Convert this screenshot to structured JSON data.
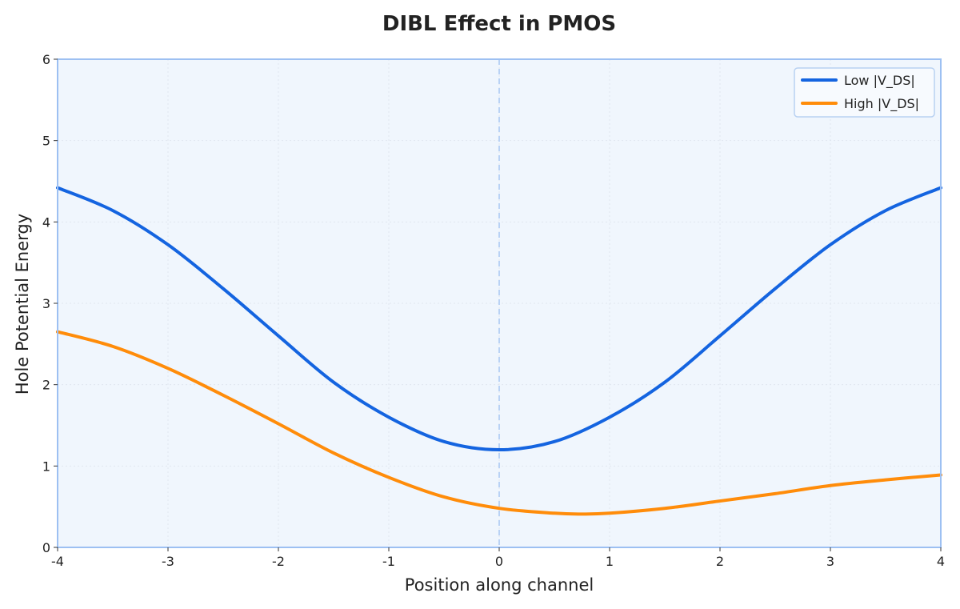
{
  "chart_data": {
    "type": "line",
    "title": "DIBL Effect in PMOS",
    "xlabel": "Position along channel",
    "ylabel": "Hole Potential Energy",
    "xlim": [
      -4,
      4
    ],
    "ylim": [
      0,
      6
    ],
    "xticks": [
      -4,
      -3,
      -2,
      -1,
      0,
      1,
      2,
      3,
      4
    ],
    "yticks": [
      0,
      1,
      2,
      3,
      4,
      5,
      6
    ],
    "xtick_labels": [
      "-4",
      "-3",
      "-2",
      "-1",
      "0",
      "1",
      "2",
      "3",
      "4"
    ],
    "ytick_labels": [
      "0",
      "1",
      "2",
      "3",
      "4",
      "5",
      "6"
    ],
    "grid": true,
    "legend_position": "top-right",
    "vline_x": 0,
    "series": [
      {
        "name": "Low |V_DS|",
        "color": "#1464e0",
        "x": [
          -4,
          -3.5,
          -3,
          -2.5,
          -2,
          -1.5,
          -1,
          -0.5,
          0,
          0.5,
          1,
          1.5,
          2,
          2.5,
          3,
          3.5,
          4
        ],
        "y": [
          4.42,
          4.14,
          3.72,
          3.18,
          2.6,
          2.03,
          1.6,
          1.3,
          1.2,
          1.3,
          1.6,
          2.03,
          2.6,
          3.18,
          3.72,
          4.14,
          4.42
        ]
      },
      {
        "name": "High |V_DS|",
        "color": "#ff8c0a",
        "x": [
          -4,
          -3.5,
          -3,
          -2.5,
          -2,
          -1.5,
          -1,
          -0.5,
          0,
          0.5,
          0.75,
          1,
          1.5,
          2,
          2.5,
          3,
          3.5,
          4
        ],
        "y": [
          2.65,
          2.47,
          2.2,
          1.87,
          1.52,
          1.16,
          0.86,
          0.62,
          0.48,
          0.42,
          0.41,
          0.42,
          0.48,
          0.57,
          0.66,
          0.76,
          0.83,
          0.89
        ]
      }
    ],
    "colors": {
      "plot_background": "#f0f6fd",
      "plot_border": "#9dc0f2",
      "grid": "#dfe6ef",
      "vline": "#b9d2f5"
    }
  }
}
